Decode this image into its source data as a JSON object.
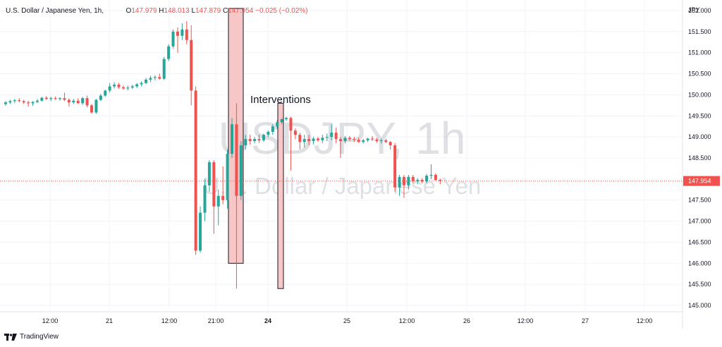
{
  "header": {
    "symbol": "U.S. Dollar / Japanese Yen, 1h,",
    "open_label": "O",
    "open": "147.979",
    "high_label": "H",
    "high": "148.013",
    "low_label": "L",
    "low": "147.879",
    "close_label": "C",
    "close": "147.954",
    "change": "−0.025 (−0.02%)"
  },
  "watermark": {
    "ticker": "USDJPY, 1h",
    "name": "U.S. Dollar / Japanese Yen"
  },
  "branding": {
    "name": "TradingView"
  },
  "colors": {
    "up": "#26a69a",
    "down": "#ef5350",
    "highlight_fill": "#f7c6c6",
    "price_line": "#ef5350"
  },
  "chart_data": {
    "type": "candlestick",
    "currency": "JPY",
    "last_price": "147.954",
    "ylim": [
      144.85,
      152.25
    ],
    "y_ticks": [
      "152.000",
      "151.500",
      "151.000",
      "150.500",
      "150.000",
      "149.500",
      "149.000",
      "148.500",
      "148.000",
      "147.500",
      "147.000",
      "146.500",
      "146.000",
      "145.500",
      "145.000"
    ],
    "x_ticks": [
      "12:00",
      "21",
      "12:00",
      "21:00",
      "24",
      "25",
      "12:00",
      "26",
      "12:00",
      "27",
      "12:00"
    ],
    "bold_x_ticks": [
      "24"
    ],
    "annotation": "Interventions",
    "highlighted_ranges": [
      {
        "high": 152.05,
        "low": 146.0
      },
      {
        "high": 149.8,
        "low": 145.4
      }
    ],
    "candles": [
      {
        "o": 149.78,
        "h": 149.85,
        "l": 149.74,
        "c": 149.82
      },
      {
        "o": 149.82,
        "h": 149.88,
        "l": 149.78,
        "c": 149.85
      },
      {
        "o": 149.85,
        "h": 149.9,
        "l": 149.8,
        "c": 149.87
      },
      {
        "o": 149.87,
        "h": 149.92,
        "l": 149.82,
        "c": 149.85
      },
      {
        "o": 149.85,
        "h": 149.88,
        "l": 149.78,
        "c": 149.82
      },
      {
        "o": 149.82,
        "h": 149.86,
        "l": 149.72,
        "c": 149.8
      },
      {
        "o": 149.8,
        "h": 149.85,
        "l": 149.74,
        "c": 149.83
      },
      {
        "o": 149.83,
        "h": 149.9,
        "l": 149.8,
        "c": 149.86
      },
      {
        "o": 149.86,
        "h": 149.95,
        "l": 149.84,
        "c": 149.93
      },
      {
        "o": 149.93,
        "h": 149.97,
        "l": 149.88,
        "c": 149.9
      },
      {
        "o": 149.9,
        "h": 149.95,
        "l": 149.85,
        "c": 149.92
      },
      {
        "o": 149.92,
        "h": 149.96,
        "l": 149.88,
        "c": 149.9
      },
      {
        "o": 149.9,
        "h": 149.94,
        "l": 149.86,
        "c": 149.92
      },
      {
        "o": 149.92,
        "h": 150.05,
        "l": 149.85,
        "c": 149.88
      },
      {
        "o": 149.88,
        "h": 149.92,
        "l": 149.72,
        "c": 149.82
      },
      {
        "o": 149.82,
        "h": 149.9,
        "l": 149.78,
        "c": 149.86
      },
      {
        "o": 149.86,
        "h": 149.92,
        "l": 149.78,
        "c": 149.8
      },
      {
        "o": 149.8,
        "h": 149.95,
        "l": 149.76,
        "c": 149.92
      },
      {
        "o": 149.92,
        "h": 149.98,
        "l": 149.7,
        "c": 149.75
      },
      {
        "o": 149.75,
        "h": 149.78,
        "l": 149.55,
        "c": 149.58
      },
      {
        "o": 149.58,
        "h": 149.9,
        "l": 149.55,
        "c": 149.88
      },
      {
        "o": 149.88,
        "h": 150.02,
        "l": 149.85,
        "c": 149.98
      },
      {
        "o": 149.98,
        "h": 150.12,
        "l": 149.95,
        "c": 150.1
      },
      {
        "o": 150.1,
        "h": 150.28,
        "l": 150.05,
        "c": 150.2
      },
      {
        "o": 150.2,
        "h": 150.3,
        "l": 150.15,
        "c": 150.24
      },
      {
        "o": 150.24,
        "h": 150.28,
        "l": 150.14,
        "c": 150.18
      },
      {
        "o": 150.18,
        "h": 150.22,
        "l": 150.12,
        "c": 150.15
      },
      {
        "o": 150.15,
        "h": 150.22,
        "l": 150.1,
        "c": 150.17
      },
      {
        "o": 150.17,
        "h": 150.24,
        "l": 150.14,
        "c": 150.2
      },
      {
        "o": 150.2,
        "h": 150.28,
        "l": 150.16,
        "c": 150.25
      },
      {
        "o": 150.25,
        "h": 150.32,
        "l": 150.2,
        "c": 150.28
      },
      {
        "o": 150.28,
        "h": 150.4,
        "l": 150.25,
        "c": 150.36
      },
      {
        "o": 150.36,
        "h": 150.45,
        "l": 150.3,
        "c": 150.4
      },
      {
        "o": 150.4,
        "h": 150.46,
        "l": 150.34,
        "c": 150.42
      },
      {
        "o": 150.42,
        "h": 150.5,
        "l": 150.36,
        "c": 150.38
      },
      {
        "o": 150.38,
        "h": 150.9,
        "l": 150.35,
        "c": 150.85
      },
      {
        "o": 150.85,
        "h": 151.2,
        "l": 150.8,
        "c": 151.15
      },
      {
        "o": 151.15,
        "h": 151.55,
        "l": 151.1,
        "c": 151.5
      },
      {
        "o": 151.5,
        "h": 151.6,
        "l": 151.0,
        "c": 151.4
      },
      {
        "o": 151.4,
        "h": 151.7,
        "l": 151.3,
        "c": 151.55
      },
      {
        "o": 151.55,
        "h": 151.75,
        "l": 151.2,
        "c": 151.3
      },
      {
        "o": 151.3,
        "h": 151.65,
        "l": 149.75,
        "c": 150.1
      },
      {
        "o": 150.1,
        "h": 150.2,
        "l": 146.2,
        "c": 146.3
      },
      {
        "o": 146.3,
        "h": 147.35,
        "l": 146.25,
        "c": 147.2
      },
      {
        "o": 147.2,
        "h": 148.0,
        "l": 147.0,
        "c": 147.85
      },
      {
        "o": 147.85,
        "h": 148.45,
        "l": 147.7,
        "c": 148.4
      },
      {
        "o": 148.4,
        "h": 148.45,
        "l": 146.7,
        "c": 147.35
      },
      {
        "o": 147.35,
        "h": 147.75,
        "l": 146.9,
        "c": 147.6
      },
      {
        "o": 147.6,
        "h": 148.3,
        "l": 147.4,
        "c": 147.5
      },
      {
        "o": 147.5,
        "h": 148.7,
        "l": 147.3,
        "c": 148.6
      },
      {
        "o": 148.6,
        "h": 149.45,
        "l": 148.5,
        "c": 149.3
      },
      {
        "o": 149.3,
        "h": 149.8,
        "l": 145.4,
        "c": 147.6
      },
      {
        "o": 147.6,
        "h": 148.9,
        "l": 147.5,
        "c": 148.8
      },
      {
        "o": 148.8,
        "h": 149.05,
        "l": 148.7,
        "c": 148.95
      },
      {
        "o": 148.95,
        "h": 149.05,
        "l": 148.82,
        "c": 148.9
      },
      {
        "o": 148.9,
        "h": 149.0,
        "l": 148.85,
        "c": 148.95
      },
      {
        "o": 148.95,
        "h": 149.05,
        "l": 148.86,
        "c": 148.92
      },
      {
        "o": 148.92,
        "h": 149.08,
        "l": 148.88,
        "c": 149.05
      },
      {
        "o": 149.05,
        "h": 149.15,
        "l": 149.0,
        "c": 149.12
      },
      {
        "o": 149.12,
        "h": 149.3,
        "l": 149.05,
        "c": 149.25
      },
      {
        "o": 149.25,
        "h": 149.4,
        "l": 149.2,
        "c": 149.35
      },
      {
        "o": 149.35,
        "h": 149.44,
        "l": 149.3,
        "c": 149.42
      },
      {
        "o": 149.42,
        "h": 149.48,
        "l": 149.38,
        "c": 149.45
      },
      {
        "o": 149.45,
        "h": 149.48,
        "l": 148.2,
        "c": 149.15
      },
      {
        "o": 149.15,
        "h": 149.2,
        "l": 148.95,
        "c": 149.05
      },
      {
        "o": 149.05,
        "h": 149.1,
        "l": 148.7,
        "c": 148.88
      },
      {
        "o": 148.88,
        "h": 149.05,
        "l": 148.75,
        "c": 148.95
      },
      {
        "o": 148.95,
        "h": 149.05,
        "l": 148.8,
        "c": 148.9
      },
      {
        "o": 148.9,
        "h": 149.0,
        "l": 148.82,
        "c": 148.96
      },
      {
        "o": 148.96,
        "h": 149.0,
        "l": 148.88,
        "c": 148.92
      },
      {
        "o": 148.92,
        "h": 149.05,
        "l": 148.85,
        "c": 148.98
      },
      {
        "o": 148.98,
        "h": 149.08,
        "l": 148.9,
        "c": 149.0
      },
      {
        "o": 149.0,
        "h": 149.3,
        "l": 148.92,
        "c": 149.1
      },
      {
        "o": 149.1,
        "h": 149.22,
        "l": 148.85,
        "c": 148.95
      },
      {
        "o": 148.95,
        "h": 149.0,
        "l": 148.5,
        "c": 148.9
      },
      {
        "o": 148.9,
        "h": 149.02,
        "l": 148.85,
        "c": 148.98
      },
      {
        "o": 148.98,
        "h": 149.02,
        "l": 148.9,
        "c": 148.95
      },
      {
        "o": 148.95,
        "h": 149.0,
        "l": 148.88,
        "c": 148.93
      },
      {
        "o": 148.93,
        "h": 148.98,
        "l": 148.86,
        "c": 148.88
      },
      {
        "o": 148.88,
        "h": 148.95,
        "l": 148.84,
        "c": 148.92
      },
      {
        "o": 148.92,
        "h": 148.98,
        "l": 148.88,
        "c": 148.96
      },
      {
        "o": 148.96,
        "h": 149.02,
        "l": 148.9,
        "c": 148.94
      },
      {
        "o": 148.94,
        "h": 148.98,
        "l": 148.86,
        "c": 148.9
      },
      {
        "o": 148.9,
        "h": 148.96,
        "l": 148.84,
        "c": 148.92
      },
      {
        "o": 148.92,
        "h": 148.96,
        "l": 148.85,
        "c": 148.88
      },
      {
        "o": 148.88,
        "h": 148.9,
        "l": 148.7,
        "c": 148.8
      },
      {
        "o": 148.8,
        "h": 148.85,
        "l": 147.7,
        "c": 147.8
      },
      {
        "o": 147.8,
        "h": 148.1,
        "l": 147.6,
        "c": 148.05
      },
      {
        "o": 148.05,
        "h": 148.1,
        "l": 147.55,
        "c": 147.85
      },
      {
        "o": 147.85,
        "h": 148.1,
        "l": 147.75,
        "c": 148.05
      },
      {
        "o": 148.05,
        "h": 148.1,
        "l": 147.9,
        "c": 147.95
      },
      {
        "o": 147.95,
        "h": 148.02,
        "l": 147.88,
        "c": 147.98
      },
      {
        "o": 147.98,
        "h": 148.02,
        "l": 147.9,
        "c": 147.94
      },
      {
        "o": 147.94,
        "h": 148.12,
        "l": 147.9,
        "c": 148.08
      },
      {
        "o": 148.08,
        "h": 148.35,
        "l": 148.0,
        "c": 148.1
      },
      {
        "o": 148.1,
        "h": 148.14,
        "l": 147.96,
        "c": 147.98
      },
      {
        "o": 147.98,
        "h": 148.01,
        "l": 147.88,
        "c": 147.954
      }
    ]
  }
}
